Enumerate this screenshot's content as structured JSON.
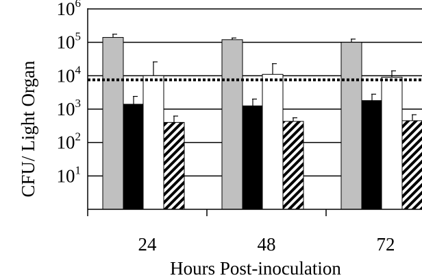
{
  "chart_data": {
    "type": "bar",
    "title": "",
    "xlabel": "Hours Post-inoculation",
    "ylabel": "CFU/ Light Organ",
    "y_scale": "log",
    "ylim": [
      1,
      1000000
    ],
    "grid": true,
    "legend": "none",
    "categories": [
      "24",
      "48",
      "72"
    ],
    "y_ticks": [
      {
        "base": "10",
        "exp": "1",
        "value": 10
      },
      {
        "base": "10",
        "exp": "2",
        "value": 100
      },
      {
        "base": "10",
        "exp": "3",
        "value": 1000
      },
      {
        "base": "10",
        "exp": "4",
        "value": 10000
      },
      {
        "base": "10",
        "exp": "5",
        "value": 100000
      },
      {
        "base": "10",
        "exp": "6",
        "value": 1000000
      }
    ],
    "series": [
      {
        "fill": "gray",
        "values": [
          140000,
          120000,
          100000
        ],
        "errors": [
          175000,
          135000,
          125000
        ]
      },
      {
        "fill": "black",
        "values": [
          1400,
          1250,
          1800
        ],
        "errors": [
          2400,
          2000,
          2800
        ]
      },
      {
        "fill": "white",
        "values": [
          10000,
          11000,
          9000
        ],
        "errors": [
          26000,
          23000,
          14000
        ]
      },
      {
        "fill": "hatched",
        "values": [
          400,
          430,
          450
        ],
        "errors": [
          620,
          550,
          680
        ]
      }
    ],
    "reference_line": {
      "value": 7500,
      "style": "dotted"
    }
  },
  "colors": {
    "gray": "#c0c0c0",
    "black": "#000000",
    "white": "#ffffff",
    "hatch": "#000000",
    "gridline": "#000000"
  }
}
